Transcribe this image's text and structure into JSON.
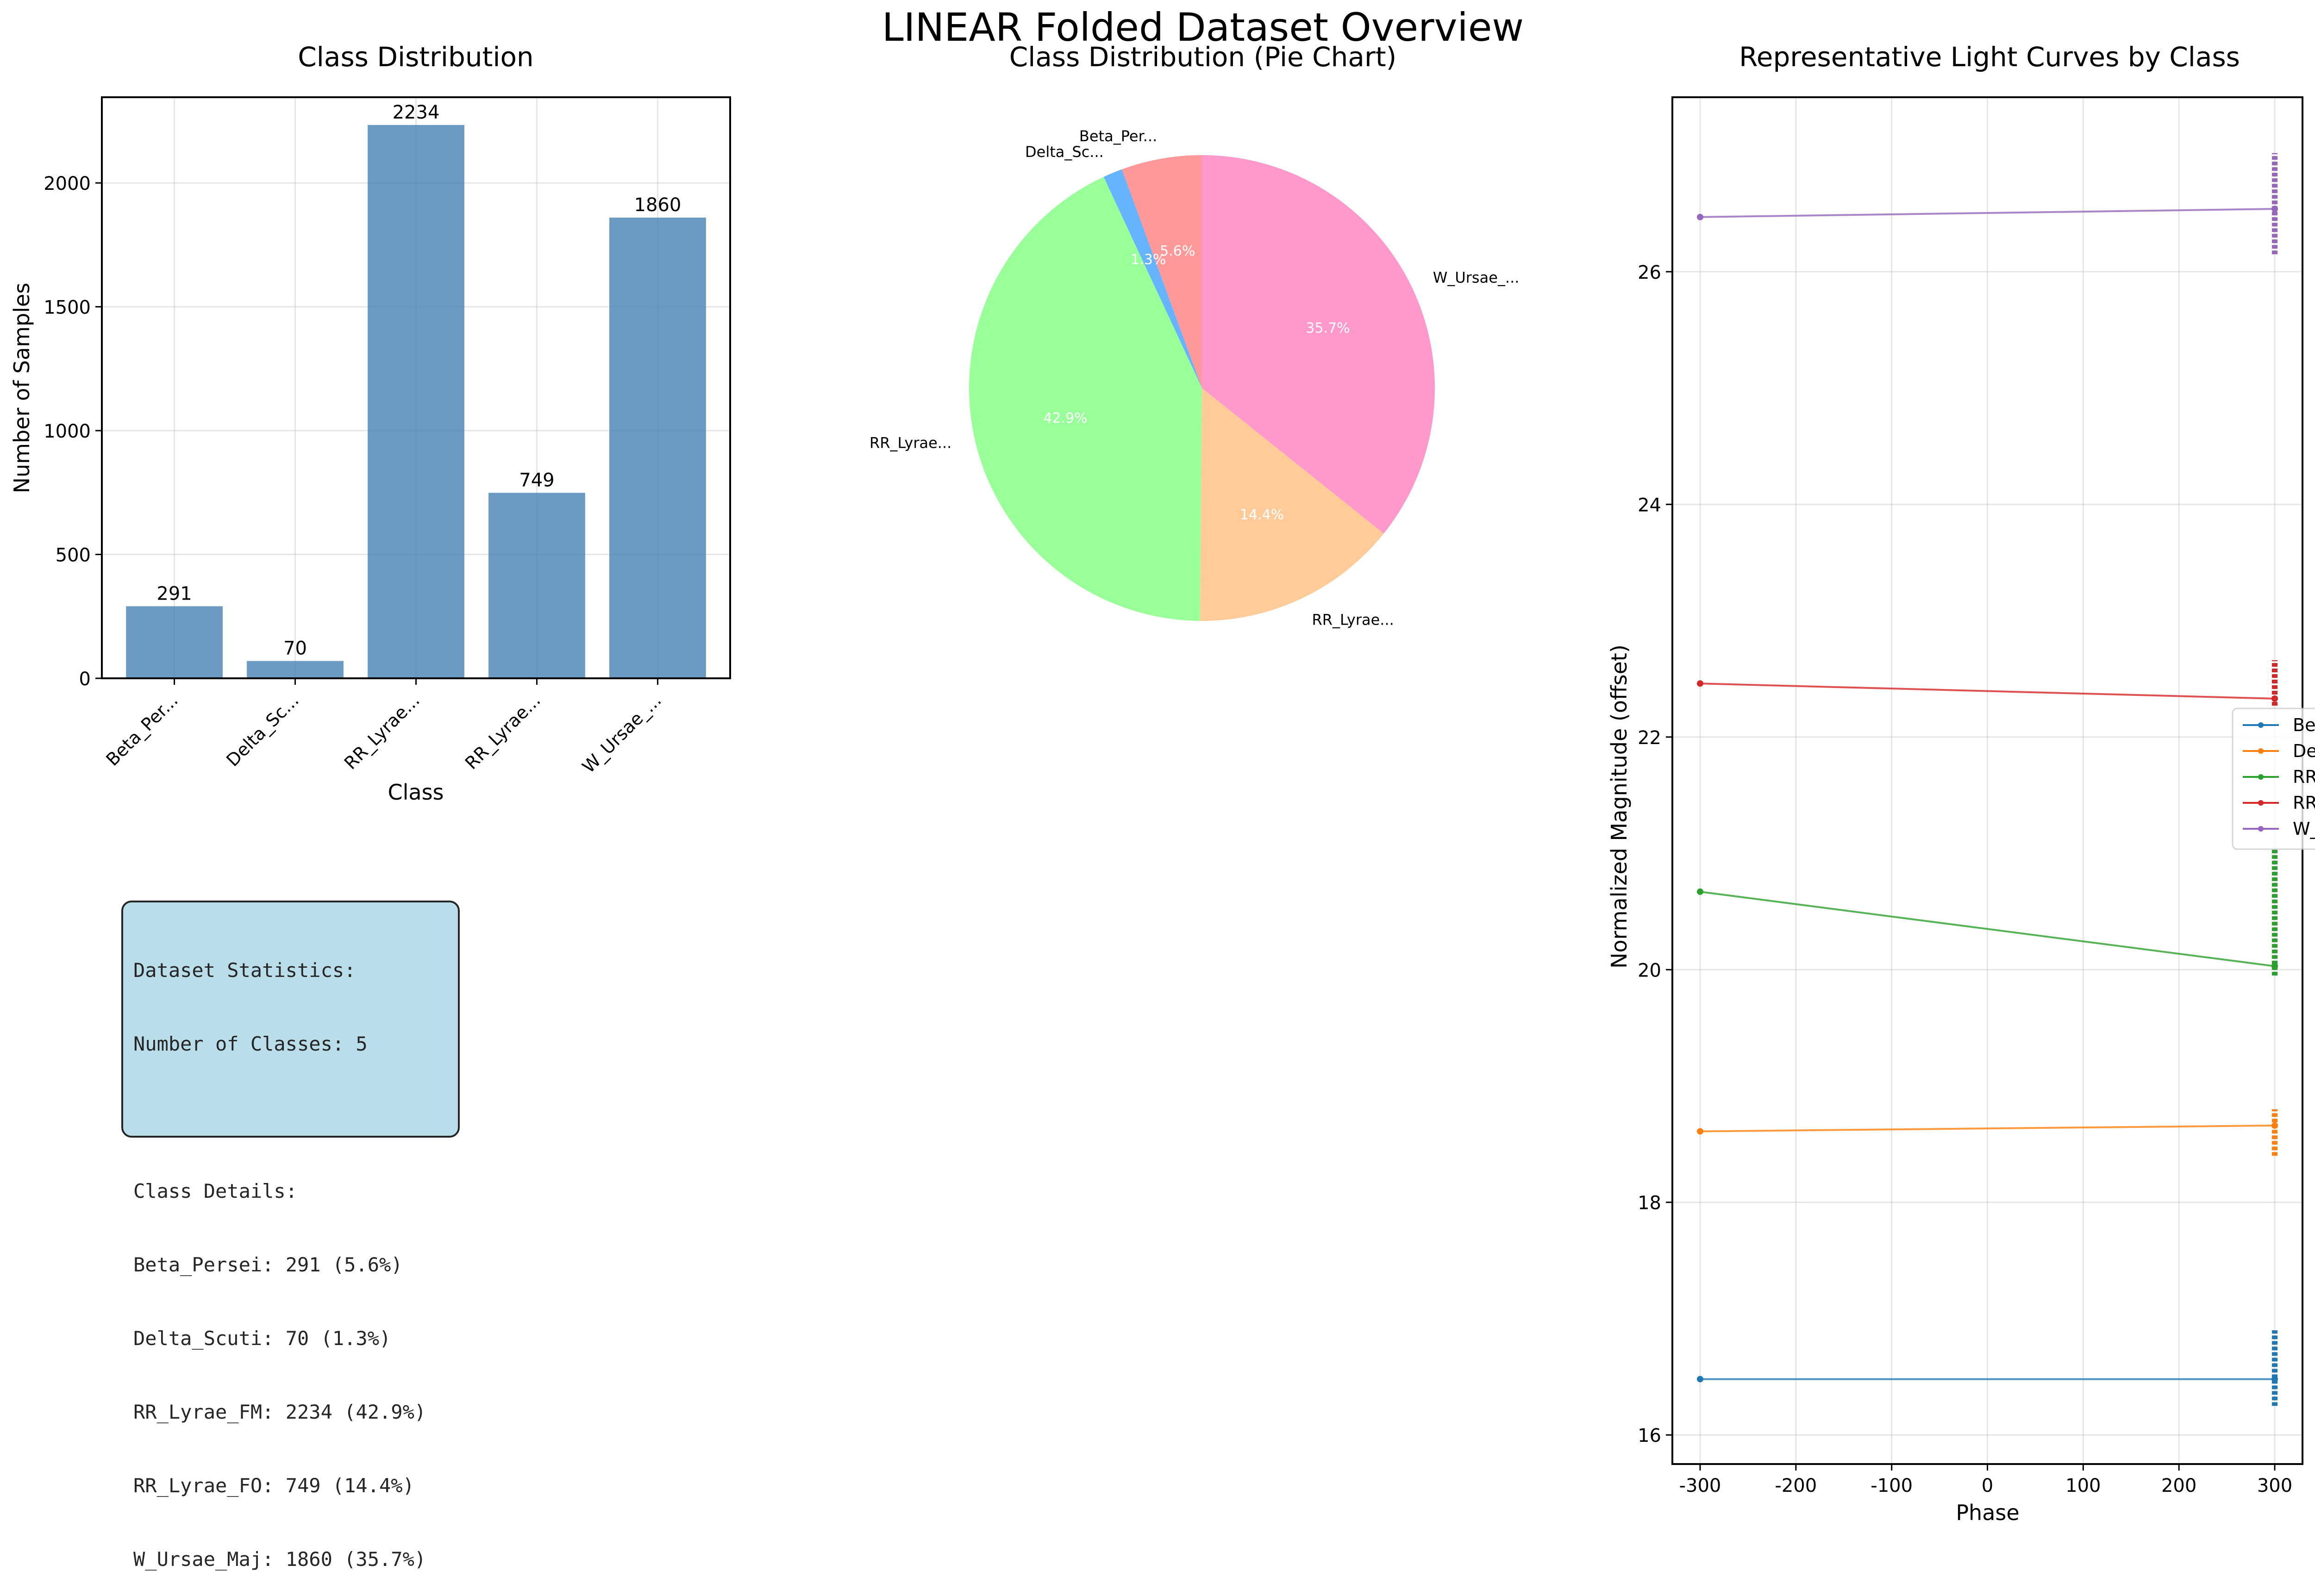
{
  "figure": {
    "title": "LINEAR Folded Dataset Overview"
  },
  "colors": {
    "bar": "#4682b4",
    "pie": [
      "#ff9999",
      "#66b3ff",
      "#99ff99",
      "#ffcc99",
      "#ff99cc"
    ],
    "lines": [
      "#1f77b4",
      "#ff7f0e",
      "#2ca02c",
      "#d62728",
      "#9467bd"
    ],
    "stats_box": "#add8e6"
  },
  "chart_data": [
    {
      "type": "bar",
      "title": "Class Distribution",
      "xlabel": "Class",
      "ylabel": "Number of Samples",
      "categories": [
        "Beta_Per...",
        "Delta_Sc...",
        "RR_Lyrae...",
        "RR_Lyrae...",
        "W_Ursae_..."
      ],
      "values": [
        291,
        70,
        2234,
        749,
        1860
      ],
      "data_labels": [
        "291",
        "70",
        "2234",
        "749",
        "1860"
      ],
      "ylim": [
        0,
        2346
      ],
      "yticks": [
        0,
        500,
        1000,
        1500,
        2000
      ],
      "grid": true
    },
    {
      "type": "pie",
      "title": "Class Distribution (Pie Chart)",
      "labels": [
        "Beta_Per...",
        "Delta_Sc...",
        "RR_Lyrae...",
        "RR_Lyrae...",
        "W_Ursae_..."
      ],
      "values": [
        291,
        70,
        2234,
        749,
        1860
      ],
      "percent_labels": [
        "5.6%",
        "1.3%",
        "42.9%",
        "14.4%",
        "35.7%"
      ],
      "start_angle": 90,
      "direction": "counterclockwise"
    },
    {
      "type": "line",
      "title": "Representative Light Curves by Class",
      "xlabel": "Phase",
      "ylabel": "Normalized Magnitude (offset)",
      "xlim": [
        -329,
        329
      ],
      "ylim": [
        15.75,
        27.5
      ],
      "xticks": [
        -300,
        -200,
        -100,
        0,
        100,
        200,
        300
      ],
      "yticks": [
        16,
        18,
        20,
        22,
        24,
        26
      ],
      "grid": true,
      "legend": "right",
      "series": [
        {
          "name": "Beta_Per...",
          "x": [
            -300,
            300
          ],
          "y": [
            16.48,
            16.48
          ],
          "cluster": {
            "x": 300,
            "ymin": 16.25,
            "ymax": 16.9
          }
        },
        {
          "name": "Delta_Sc...",
          "x": [
            -300,
            300
          ],
          "y": [
            18.61,
            18.66
          ],
          "cluster": {
            "x": 300,
            "ymin": 18.4,
            "ymax": 18.8
          }
        },
        {
          "name": "RR_Lyrae...",
          "x": [
            -300,
            300
          ],
          "y": [
            20.67,
            20.03
          ],
          "cluster": {
            "x": 300,
            "ymin": 19.95,
            "ymax": 21.05
          }
        },
        {
          "name": "RR_Lyrae...",
          "x": [
            -300,
            300
          ],
          "y": [
            22.46,
            22.33
          ],
          "cluster": {
            "x": 300,
            "ymin": 22.27,
            "ymax": 22.66
          }
        },
        {
          "name": "W_Ursae_...",
          "x": [
            -300,
            300
          ],
          "y": [
            26.47,
            26.54
          ],
          "cluster": {
            "x": 300,
            "ymin": 26.15,
            "ymax": 27.02
          }
        }
      ]
    }
  ],
  "stats_box": {
    "lines": [
      "Dataset Statistics:",
      "Number of Classes: 5",
      "",
      "Class Details:",
      "Beta_Persei: 291 (5.6%)",
      "Delta_Scuti: 70 (1.3%)",
      "RR_Lyrae_FM: 2234 (42.9%)",
      "RR_Lyrae_FO: 749 (14.4%)",
      "W_Ursae_Maj: 1860 (35.7%)"
    ]
  }
}
